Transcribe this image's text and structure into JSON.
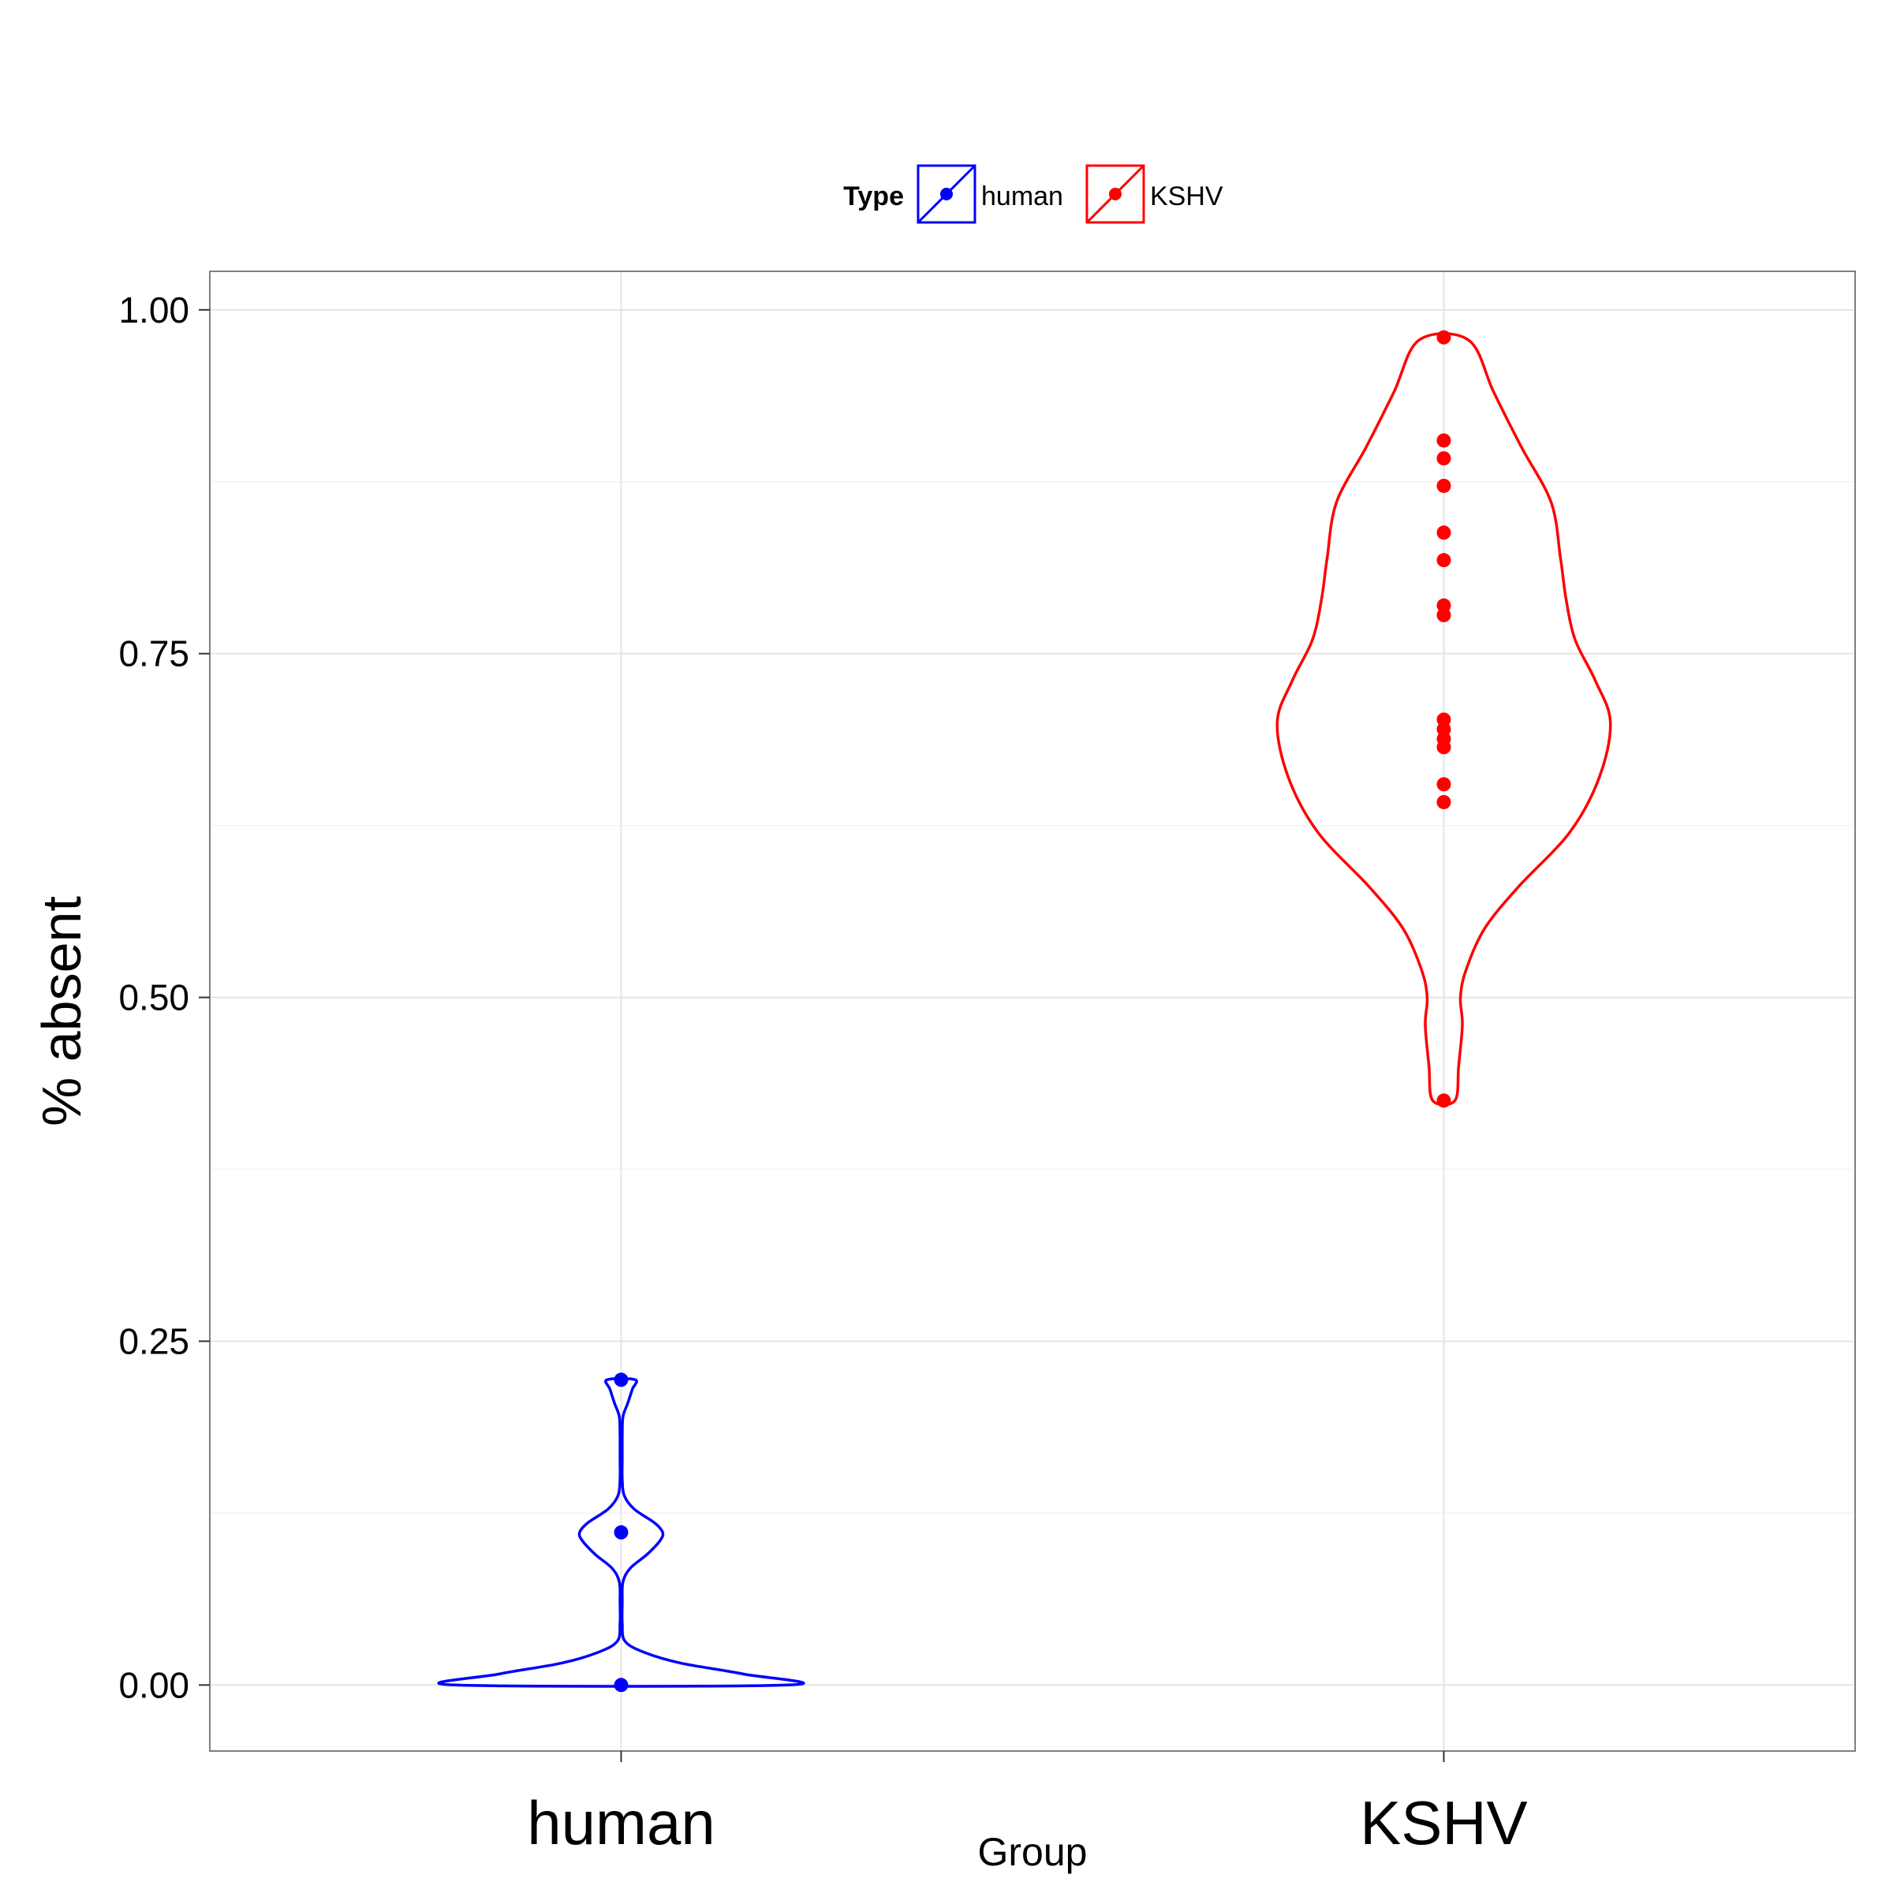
{
  "chart_data": {
    "type": "violin",
    "xlabel": "Group",
    "ylabel": "% absent",
    "categories": [
      "human",
      "KSHV"
    ],
    "ylim": [
      -0.048,
      1.028
    ],
    "yticks": [
      0.0,
      0.25,
      0.5,
      0.75,
      1.0
    ],
    "ytick_labels": [
      "0.00",
      "0.25",
      "0.50",
      "0.75",
      "1.00"
    ],
    "grid": true,
    "legend": {
      "title": "Type",
      "position": "top",
      "entries": [
        {
          "label": "human",
          "color": "#0000ff"
        },
        {
          "label": "KSHV",
          "color": "#ff0000"
        }
      ]
    },
    "series": [
      {
        "name": "human",
        "category": "human",
        "color": "#0000ff",
        "points": [
          0.0,
          0.111,
          0.222
        ],
        "density": [
          [
            0.0,
            0.45
          ],
          [
            0.008,
            0.33
          ],
          [
            0.016,
            0.16
          ],
          [
            0.024,
            0.06
          ],
          [
            0.032,
            0.01
          ],
          [
            0.045,
            0.003
          ],
          [
            0.06,
            0.003
          ],
          [
            0.075,
            0.005
          ],
          [
            0.085,
            0.025
          ],
          [
            0.095,
            0.07
          ],
          [
            0.105,
            0.105
          ],
          [
            0.111,
            0.112
          ],
          [
            0.118,
            0.09
          ],
          [
            0.128,
            0.035
          ],
          [
            0.138,
            0.008
          ],
          [
            0.15,
            0.003
          ],
          [
            0.165,
            0.003
          ],
          [
            0.18,
            0.003
          ],
          [
            0.195,
            0.005
          ],
          [
            0.205,
            0.018
          ],
          [
            0.215,
            0.03
          ],
          [
            0.222,
            0.038
          ]
        ]
      },
      {
        "name": "KSHV",
        "category": "KSHV",
        "color": "#ff0000",
        "points": [
          0.425,
          0.642,
          0.655,
          0.682,
          0.688,
          0.695,
          0.702,
          0.778,
          0.785,
          0.818,
          0.838,
          0.872,
          0.892,
          0.905,
          0.98
        ],
        "density": [
          [
            0.425,
            0.03
          ],
          [
            0.45,
            0.04
          ],
          [
            0.48,
            0.05
          ],
          [
            0.5,
            0.045
          ],
          [
            0.52,
            0.06
          ],
          [
            0.55,
            0.11
          ],
          [
            0.58,
            0.2
          ],
          [
            0.62,
            0.34
          ],
          [
            0.66,
            0.42
          ],
          [
            0.7,
            0.45
          ],
          [
            0.73,
            0.41
          ],
          [
            0.76,
            0.355
          ],
          [
            0.79,
            0.33
          ],
          [
            0.82,
            0.315
          ],
          [
            0.86,
            0.29
          ],
          [
            0.9,
            0.21
          ],
          [
            0.94,
            0.135
          ],
          [
            0.978,
            0.067
          ]
        ]
      }
    ]
  }
}
